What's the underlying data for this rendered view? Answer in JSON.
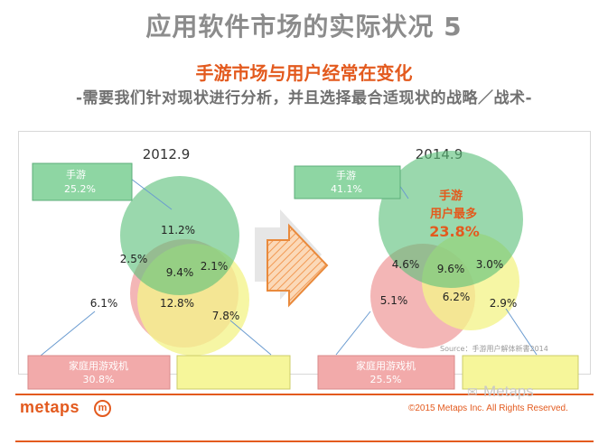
{
  "slide": {
    "title": "应用软件市场的实际状况 5",
    "subtitle": "手游市场与用户经常在变化",
    "tagline": "-需要我们针对现状进行分析，并且选择最合适现状的战略／战术-",
    "source": "Source：手游用户解体新書2014",
    "colors": {
      "accent": "#e35a1e",
      "title_gray": "#8c8c8c",
      "mobile_green": "#5cc07a",
      "console_pink": "#ef9a9a",
      "pc_yellow": "#f4f48a"
    }
  },
  "diagram_2012": {
    "year": "2012.9",
    "legend_mobile": {
      "label": "手游",
      "value": "25.2%"
    },
    "legend_console": {
      "label": "家庭用游戏机",
      "value": "30.8%"
    },
    "legend_pc": {
      "label": "",
      "value": ""
    },
    "regions": {
      "mobile_only": "11.2%",
      "mobile_console": "2.5%",
      "mobile_pc": "2.1%",
      "all_three": "9.4%",
      "console_pc": "12.8%",
      "console_only": "6.1%",
      "pc_only": "7.8%"
    }
  },
  "diagram_2014": {
    "year": "2014.9",
    "legend_mobile": {
      "label": "手游",
      "value": "41.1%"
    },
    "legend_console": {
      "label": "家庭用游戏机",
      "value": "25.5%"
    },
    "legend_pc": {
      "label": "",
      "value": ""
    },
    "highlight": {
      "line1": "手游",
      "line2": "用户最多",
      "value": "23.8%"
    },
    "regions": {
      "mobile_console": "4.6%",
      "all_three": "9.6%",
      "mobile_pc": "3.0%",
      "console_pc": "6.2%",
      "console_only": "5.1%",
      "pc_only": "2.9%"
    }
  },
  "footer": {
    "logo": "metaps",
    "logo_mark": "m",
    "copyright": "©2015 Metaps Inc.  All Rights Reserved.",
    "watermark": "Metaps"
  }
}
